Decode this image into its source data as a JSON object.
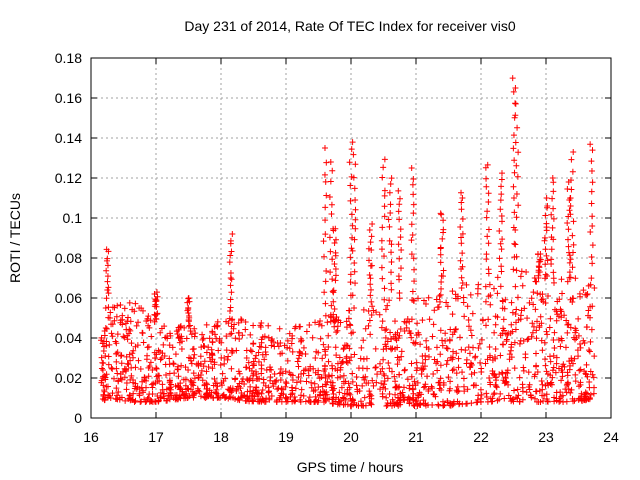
{
  "chart_data": {
    "type": "scatter",
    "title": "Day 231 of 2014, Rate Of TEC Index for receiver vis0",
    "xlabel": "GPS time / hours",
    "ylabel": "ROTI / TECUs",
    "xlim": [
      16,
      24
    ],
    "ylim": [
      0,
      0.18
    ],
    "x_ticks": [
      16,
      17,
      18,
      19,
      20,
      21,
      22,
      23,
      24
    ],
    "y_ticks": [
      0,
      0.02,
      0.04,
      0.06,
      0.08,
      0.1,
      0.12,
      0.14,
      0.16,
      0.18
    ],
    "x_tick_labels": [
      "16",
      "17",
      "18",
      "19",
      "20",
      "21",
      "22",
      "23",
      "24"
    ],
    "y_tick_labels": [
      "0",
      "0.02",
      "0.04",
      "0.06",
      "0.08",
      "0.1",
      "0.12",
      "0.14",
      "0.16",
      "0.18"
    ],
    "grid": true,
    "marker": "+",
    "series": [
      {
        "name": "vis0",
        "color": "#ff0000",
        "x_range": [
          16.15,
          23.75
        ],
        "baseline_envelope": {
          "x": [
            16.15,
            16.3,
            16.6,
            17.0,
            17.5,
            18.0,
            18.5,
            19.0,
            19.5,
            20.0,
            20.5,
            21.0,
            21.5,
            22.0,
            22.5,
            23.0,
            23.5,
            23.75
          ],
          "y_low": [
            0.008,
            0.01,
            0.008,
            0.008,
            0.01,
            0.01,
            0.008,
            0.008,
            0.008,
            0.006,
            0.006,
            0.006,
            0.006,
            0.008,
            0.008,
            0.008,
            0.008,
            0.01
          ],
          "y_high": [
            0.045,
            0.055,
            0.06,
            0.05,
            0.045,
            0.05,
            0.05,
            0.045,
            0.05,
            0.055,
            0.06,
            0.06,
            0.065,
            0.07,
            0.075,
            0.07,
            0.07,
            0.065
          ]
        },
        "peaks": [
          {
            "x": 16.25,
            "y": 0.085
          },
          {
            "x": 17.0,
            "y": 0.063
          },
          {
            "x": 17.5,
            "y": 0.06
          },
          {
            "x": 18.15,
            "y": 0.092
          },
          {
            "x": 19.6,
            "y": 0.135
          },
          {
            "x": 19.7,
            "y": 0.128
          },
          {
            "x": 19.75,
            "y": 0.096
          },
          {
            "x": 20.0,
            "y": 0.139
          },
          {
            "x": 20.05,
            "y": 0.132
          },
          {
            "x": 20.3,
            "y": 0.097
          },
          {
            "x": 20.5,
            "y": 0.13
          },
          {
            "x": 20.6,
            "y": 0.12
          },
          {
            "x": 20.75,
            "y": 0.115
          },
          {
            "x": 20.95,
            "y": 0.125
          },
          {
            "x": 21.4,
            "y": 0.103
          },
          {
            "x": 21.7,
            "y": 0.113
          },
          {
            "x": 22.1,
            "y": 0.128
          },
          {
            "x": 22.3,
            "y": 0.123
          },
          {
            "x": 22.5,
            "y": 0.17
          },
          {
            "x": 22.55,
            "y": 0.165
          },
          {
            "x": 22.9,
            "y": 0.082
          },
          {
            "x": 23.0,
            "y": 0.11
          },
          {
            "x": 23.1,
            "y": 0.12
          },
          {
            "x": 23.35,
            "y": 0.118
          },
          {
            "x": 23.4,
            "y": 0.133
          },
          {
            "x": 23.7,
            "y": 0.138
          }
        ]
      }
    ]
  }
}
